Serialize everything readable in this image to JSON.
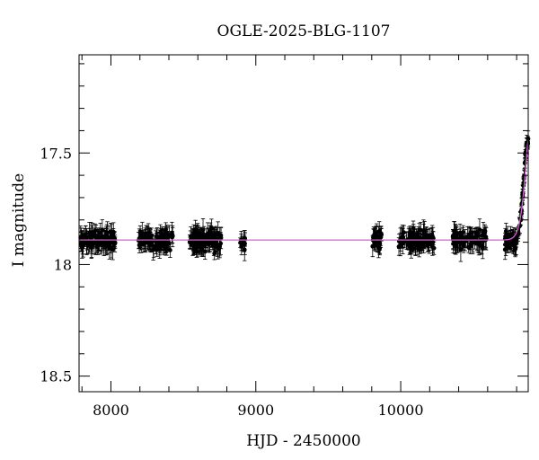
{
  "chart_data": {
    "type": "scatter",
    "title": "OGLE-2025-BLG-1107",
    "xlabel": "HJD - 2450000",
    "ylabel": "I magnitude",
    "xlim": [
      7780,
      10880
    ],
    "ylim": [
      18.57,
      17.06
    ],
    "y_inverted": true,
    "x_ticks": [
      {
        "value": 8000,
        "label": "8000"
      },
      {
        "value": 9000,
        "label": "9000"
      },
      {
        "value": 10000,
        "label": "10000"
      }
    ],
    "y_ticks": [
      {
        "value": 17.5,
        "label": "17.5"
      },
      {
        "value": 18.0,
        "label": "18"
      },
      {
        "value": 18.5,
        "label": "18.5"
      }
    ],
    "x_minor_step": 200,
    "y_minor_step": 0.1,
    "baseline_magnitude": 17.89,
    "seasons": [
      {
        "start": 7790,
        "end": 8030,
        "count": 100
      },
      {
        "start": 8190,
        "end": 8430,
        "count": 110
      },
      {
        "start": 8540,
        "end": 8760,
        "count": 110
      },
      {
        "start": 8890,
        "end": 8925,
        "count": 14
      },
      {
        "start": 9800,
        "end": 9870,
        "count": 30
      },
      {
        "start": 9985,
        "end": 10230,
        "count": 90
      },
      {
        "start": 10360,
        "end": 10590,
        "count": 80
      },
      {
        "start": 10720,
        "end": 10800,
        "count": 40
      }
    ],
    "event": {
      "t0": 10880,
      "peak_magnitude": 17.44,
      "rise_points": [
        {
          "x": 10800,
          "y": 17.88
        },
        {
          "x": 10810,
          "y": 17.86
        },
        {
          "x": 10818,
          "y": 17.83
        },
        {
          "x": 10825,
          "y": 17.8
        },
        {
          "x": 10830,
          "y": 17.77
        },
        {
          "x": 10835,
          "y": 17.73
        },
        {
          "x": 10840,
          "y": 17.69
        },
        {
          "x": 10845,
          "y": 17.64
        },
        {
          "x": 10850,
          "y": 17.6
        },
        {
          "x": 10855,
          "y": 17.55
        },
        {
          "x": 10860,
          "y": 17.51
        },
        {
          "x": 10865,
          "y": 17.48
        },
        {
          "x": 10870,
          "y": 17.46
        },
        {
          "x": 10876,
          "y": 17.45
        }
      ]
    },
    "series": [
      {
        "type": "points_with_errorbars",
        "color": "#000000",
        "scatter_mag": 0.035,
        "error_mag": 0.035
      },
      {
        "type": "model_curve",
        "color": "#d060d0"
      }
    ],
    "grid": false,
    "colors": {
      "data": "#000000",
      "model": "#d060d0",
      "axis": "#000000",
      "background": "#ffffff"
    }
  }
}
